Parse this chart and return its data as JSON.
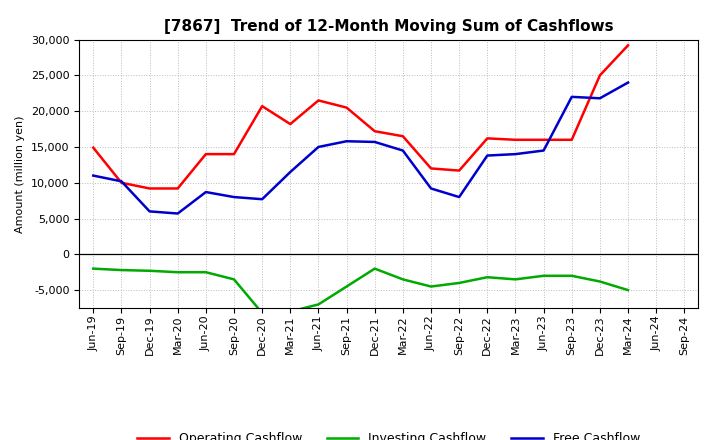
{
  "title": "[7867]  Trend of 12-Month Moving Sum of Cashflows",
  "ylabel": "Amount (million yen)",
  "background_color": "#ffffff",
  "grid_color": "#bbbbbb",
  "x_labels": [
    "Jun-19",
    "Sep-19",
    "Dec-19",
    "Mar-20",
    "Jun-20",
    "Sep-20",
    "Dec-20",
    "Mar-21",
    "Jun-21",
    "Sep-21",
    "Dec-21",
    "Mar-22",
    "Jun-22",
    "Sep-22",
    "Dec-22",
    "Mar-23",
    "Jun-23",
    "Sep-23",
    "Dec-23",
    "Mar-24",
    "Jun-24",
    "Sep-24"
  ],
  "operating_cashflow": [
    14900,
    10000,
    9200,
    9200,
    14000,
    14000,
    20700,
    18200,
    21500,
    20500,
    17200,
    16500,
    12000,
    11700,
    16200,
    16000,
    16000,
    16000,
    25000,
    29200,
    null,
    null
  ],
  "investing_cashflow": [
    -2000,
    -2200,
    -2300,
    -2500,
    -2500,
    -3500,
    -8200,
    -8000,
    -7000,
    -4500,
    -2000,
    -3500,
    -4500,
    -4000,
    -3200,
    -3500,
    -3000,
    -3000,
    -3800,
    -5000,
    null,
    null
  ],
  "free_cashflow": [
    11000,
    10200,
    6000,
    5700,
    8700,
    8000,
    7700,
    11500,
    15000,
    15800,
    15700,
    14500,
    9200,
    8000,
    13800,
    14000,
    14500,
    22000,
    21800,
    24000,
    null,
    null
  ],
  "operating_color": "#ff0000",
  "investing_color": "#00aa00",
  "free_color": "#0000cc",
  "ylim_min": -7500,
  "ylim_max": 30000,
  "yticks": [
    -5000,
    0,
    5000,
    10000,
    15000,
    20000,
    25000,
    30000
  ],
  "title_fontsize": 11,
  "legend_fontsize": 9,
  "axis_fontsize": 8,
  "line_width": 1.8
}
